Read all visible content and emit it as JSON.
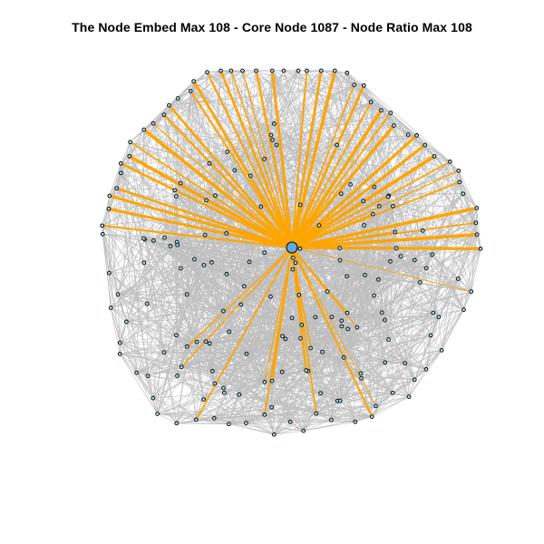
{
  "title": "The Node Embed Max 108 - Core Node 1087 - Node Ratio Max 108",
  "colors": {
    "background": "#ffffff",
    "edge": "#bebebe",
    "highlight_edge": "#ffa500",
    "node_fill": "#add8e6",
    "node_stroke": "#000000",
    "core_fill": "#5fa8e0"
  },
  "network": {
    "core_node": "1087",
    "node_count": 200,
    "highlight_edge_count": 60,
    "seed": 1087
  }
}
